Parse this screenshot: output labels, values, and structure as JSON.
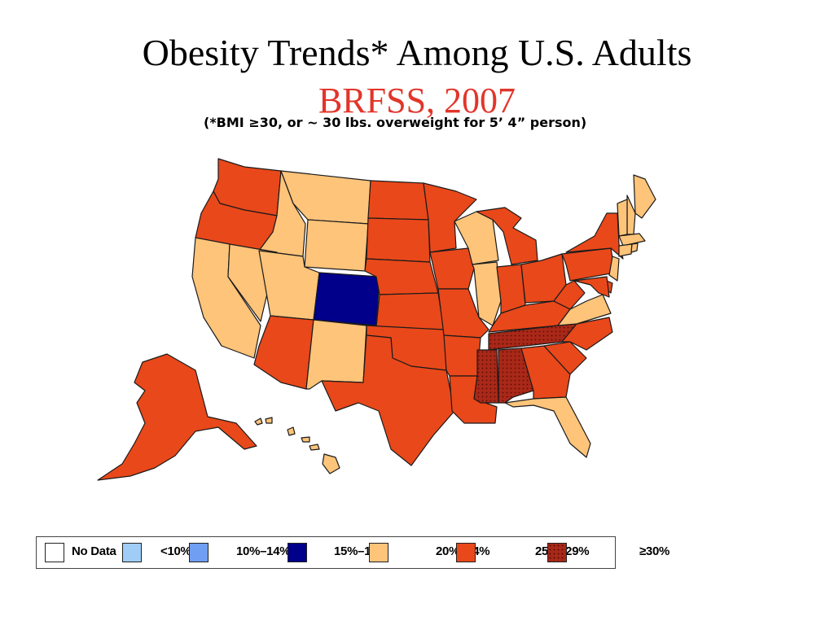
{
  "title": "Obesity Trends* Among U.S. Adults",
  "subtitle": "BRFSS, 2007",
  "note": "(*BMI ≥30, or ~ 30 lbs. overweight for 5’ 4” person)",
  "colors": {
    "no_data": "#ffffff",
    "lt10": "#9fcdf7",
    "r10_14": "#6f9ef2",
    "r15_19": "#00008b",
    "r20_24": "#fdc47a",
    "r25_29": "#e9481a",
    "ge30": "#a92818"
  },
  "legend": [
    {
      "key": "no_data",
      "label": "No Data"
    },
    {
      "key": "lt10",
      "label": "<10%"
    },
    {
      "key": "r10_14",
      "label": "10%–14%"
    },
    {
      "key": "r15_19",
      "label": "15%–19%"
    },
    {
      "key": "r20_24",
      "label": "20%–24%"
    },
    {
      "key": "r25_29",
      "label": "25%–29%"
    },
    {
      "key": "ge30",
      "label": "≥30%"
    }
  ],
  "states": [
    {
      "name": "WA",
      "cat": "r25_29"
    },
    {
      "name": "OR",
      "cat": "r25_29"
    },
    {
      "name": "CA",
      "cat": "r20_24"
    },
    {
      "name": "ID",
      "cat": "r20_24"
    },
    {
      "name": "NV",
      "cat": "r20_24"
    },
    {
      "name": "MT",
      "cat": "r20_24"
    },
    {
      "name": "WY",
      "cat": "r20_24"
    },
    {
      "name": "UT",
      "cat": "r20_24"
    },
    {
      "name": "AZ",
      "cat": "r25_29"
    },
    {
      "name": "CO",
      "cat": "r15_19"
    },
    {
      "name": "NM",
      "cat": "r20_24"
    },
    {
      "name": "ND",
      "cat": "r25_29"
    },
    {
      "name": "SD",
      "cat": "r25_29"
    },
    {
      "name": "NE",
      "cat": "r25_29"
    },
    {
      "name": "KS",
      "cat": "r25_29"
    },
    {
      "name": "OK",
      "cat": "r25_29"
    },
    {
      "name": "TX",
      "cat": "r25_29"
    },
    {
      "name": "MN",
      "cat": "r25_29"
    },
    {
      "name": "IA",
      "cat": "r25_29"
    },
    {
      "name": "MO",
      "cat": "r25_29"
    },
    {
      "name": "AR",
      "cat": "r25_29"
    },
    {
      "name": "LA",
      "cat": "r25_29"
    },
    {
      "name": "WI",
      "cat": "r20_24"
    },
    {
      "name": "IL",
      "cat": "r20_24"
    },
    {
      "name": "MI",
      "cat": "r25_29"
    },
    {
      "name": "IN",
      "cat": "r25_29"
    },
    {
      "name": "OH",
      "cat": "r25_29"
    },
    {
      "name": "KY",
      "cat": "r25_29"
    },
    {
      "name": "TN",
      "cat": "ge30"
    },
    {
      "name": "MS",
      "cat": "ge30"
    },
    {
      "name": "AL",
      "cat": "ge30"
    },
    {
      "name": "GA",
      "cat": "r25_29"
    },
    {
      "name": "FL",
      "cat": "r20_24"
    },
    {
      "name": "SC",
      "cat": "r25_29"
    },
    {
      "name": "NC",
      "cat": "r25_29"
    },
    {
      "name": "VA",
      "cat": "r20_24"
    },
    {
      "name": "WV",
      "cat": "r25_29"
    },
    {
      "name": "PA",
      "cat": "r25_29"
    },
    {
      "name": "NY",
      "cat": "r25_29"
    },
    {
      "name": "ME",
      "cat": "r20_24"
    },
    {
      "name": "NH",
      "cat": "r20_24"
    },
    {
      "name": "VT",
      "cat": "r20_24"
    },
    {
      "name": "MA",
      "cat": "r20_24"
    },
    {
      "name": "CT",
      "cat": "r20_24"
    },
    {
      "name": "RI",
      "cat": "r20_24"
    },
    {
      "name": "NJ",
      "cat": "r20_24"
    },
    {
      "name": "DE",
      "cat": "r25_29"
    },
    {
      "name": "MD",
      "cat": "r25_29"
    },
    {
      "name": "AK",
      "cat": "r25_29"
    },
    {
      "name": "HI",
      "cat": "r20_24"
    }
  ]
}
